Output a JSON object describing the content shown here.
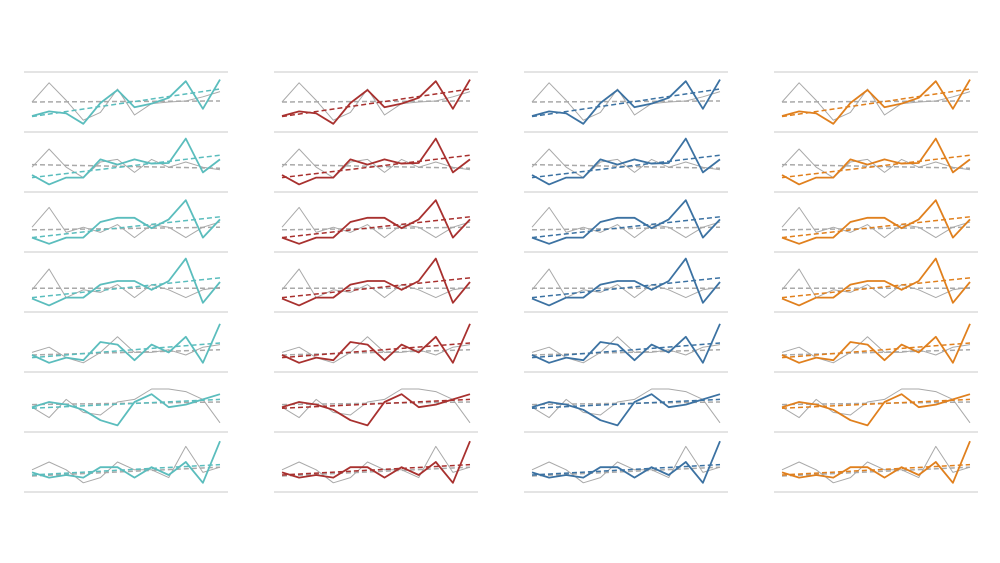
{
  "chart_data": {
    "type": "small-multiples-line",
    "ylim": [
      0,
      10
    ],
    "colors": [
      "#5bbdbd",
      "#a8312f",
      "#3c72a2",
      "#e0801e"
    ],
    "reference_color": "#a9a9a9",
    "rows": [
      {
        "values": [
          2.3,
          3.2,
          2.8,
          0.8,
          4.8,
          7.3,
          4,
          4.7,
          5.8,
          9,
          3.7,
          9.3
        ],
        "reference": [
          5,
          8.7,
          5.3,
          1.5,
          3,
          7.5,
          2.5,
          4.7,
          5,
          5.2,
          6,
          7
        ],
        "trend": [
          2.2,
          7.5
        ],
        "reference_trend": [
          5,
          5.2
        ]
      },
      {
        "values": [
          2.5,
          0.7,
          2,
          2,
          5.5,
          4.5,
          5.5,
          4.7,
          4.8,
          9.5,
          3,
          5.5
        ],
        "reference": [
          4,
          7.5,
          4,
          2,
          5,
          5.5,
          3,
          5.5,
          4,
          5,
          4,
          3.5
        ],
        "trend": [
          2,
          6.3
        ],
        "reference_trend": [
          4.5,
          3.8
        ]
      },
      {
        "values": [
          2,
          0.8,
          2,
          2,
          5,
          5.8,
          5.8,
          3.8,
          5.5,
          9.2,
          2,
          5.5
        ],
        "reference": [
          4,
          7.8,
          3,
          4,
          3,
          4.5,
          2,
          4.5,
          4,
          2,
          4,
          5
        ],
        "trend": [
          2,
          6
        ],
        "reference_trend": [
          3.5,
          4
        ]
      },
      {
        "values": [
          1.8,
          0.5,
          2,
          2,
          4.5,
          5.2,
          5.2,
          3.5,
          5.2,
          9.5,
          1,
          5
        ],
        "reference": [
          3.5,
          7.5,
          2,
          3.5,
          3,
          4.5,
          2,
          4.5,
          3.5,
          2,
          3.5,
          4
        ],
        "trend": [
          2,
          5.8
        ],
        "reference_trend": [
          3.8,
          3.8
        ]
      },
      {
        "values": [
          2.5,
          1,
          2,
          1.5,
          5,
          4.5,
          1.5,
          4.5,
          3,
          6,
          1,
          8.5
        ],
        "reference": [
          3,
          4,
          2,
          1,
          3,
          6,
          3,
          3,
          3.5,
          2.5,
          4,
          4.5
        ],
        "trend": [
          2,
          4.8
        ],
        "reference_trend": [
          2.5,
          3.5
        ]
      },
      {
        "values": [
          4,
          5,
          4.5,
          3.5,
          1.5,
          0.5,
          5,
          6.5,
          4,
          4.5,
          5.5,
          6.5
        ],
        "reference": [
          4,
          2,
          5.5,
          3,
          2.5,
          5,
          5.5,
          7.5,
          7.5,
          7,
          5.5,
          1
        ],
        "trend": [
          3.8,
          5.5
        ],
        "reference_trend": [
          4.5,
          5
        ]
      },
      {
        "values": [
          3,
          2,
          2.5,
          2,
          4,
          4,
          2,
          4,
          2.5,
          5,
          1,
          9
        ],
        "reference": [
          3.5,
          5,
          3.5,
          1,
          2,
          5,
          3.5,
          3.5,
          2,
          8,
          3,
          4
        ],
        "trend": [
          2.5,
          4.5
        ],
        "reference_trend": [
          2.3,
          4
        ]
      }
    ]
  }
}
